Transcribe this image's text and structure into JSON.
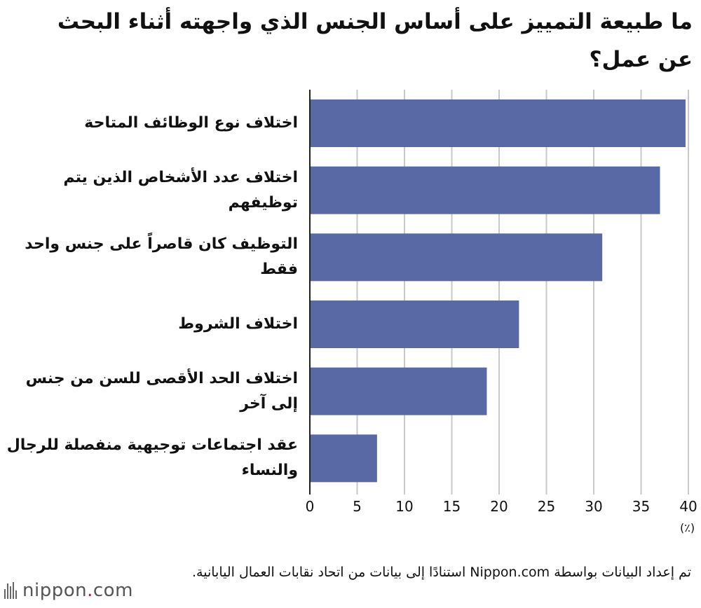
{
  "title": "ما طبيعة التمييز على أساس الجنس الذي واجهته أثناء البحث عن عمل؟",
  "unit_label": "(٪)",
  "source": "تم إعداد البيانات بواسطة Nippon.com استنادًا إلى بيانات من اتحاد نقابات العمال اليابانية.",
  "logo": {
    "name": "nippon",
    "dot": ".",
    "suffix": "com"
  },
  "colors": {
    "bar": "#5869a5",
    "grid": "#c9c9c9",
    "axis": "#222222"
  },
  "chart_data": {
    "type": "bar",
    "orientation": "horizontal",
    "categories": [
      "اختلاف نوع الوظائف المتاحة",
      "اختلاف عدد الأشخاص الذين يتم توظيفهم",
      "التوظيف كان قاصراً على جنس واحد فقط",
      "اختلاف الشروط",
      "اختلاف الحد الأقصى للسن من جنس إلى آخر",
      "عقد اجتماعات توجيهية منفصلة للرجال والنساء"
    ],
    "values": [
      39.7,
      37.0,
      30.9,
      22.1,
      18.7,
      7.1
    ],
    "xlim": [
      0,
      40
    ],
    "xticks": [
      "0",
      "5",
      "10",
      "15",
      "20",
      "25",
      "30",
      "35",
      "40"
    ],
    "grid": true
  }
}
